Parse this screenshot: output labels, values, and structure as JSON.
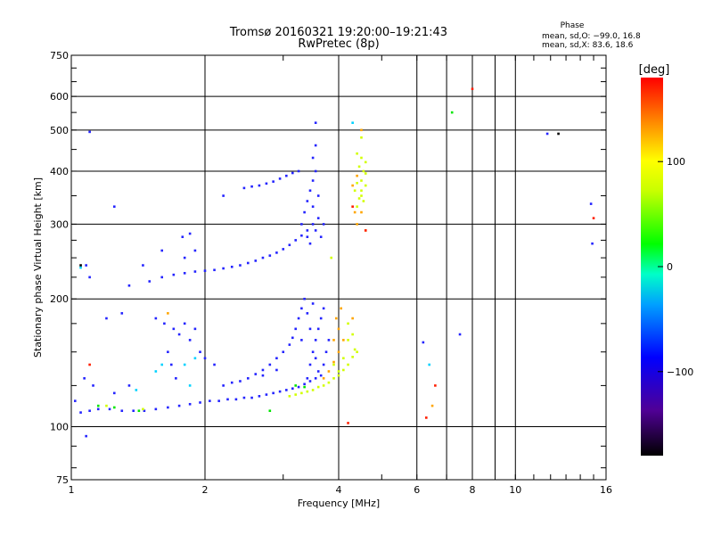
{
  "chart_data": {
    "type": "scatter",
    "title": "Tromsø 20160321 19:20:00–19:21:43",
    "subtitle": "RwPretec (8p)",
    "xlabel": "Frequency [MHz]",
    "ylabel": "Stationary phase Virtual Height [km]",
    "x_scale": "log",
    "y_scale": "log",
    "xlim": [
      1,
      16
    ],
    "ylim": [
      75,
      750
    ],
    "x_ticks": [
      1,
      2,
      4,
      6,
      8,
      10,
      16
    ],
    "x_tick_labels": [
      "1",
      "2",
      "4",
      "6",
      "8",
      "10",
      "16"
    ],
    "y_ticks": [
      75,
      100,
      200,
      300,
      400,
      500,
      600,
      750
    ],
    "y_tick_labels": [
      "75",
      "100",
      "200",
      "300",
      "400",
      "500",
      "600",
      "750"
    ],
    "grid": true,
    "phase_box": {
      "title": "Phase",
      "line1": "mean, sd,O: −99.0, 16.8",
      "line2": "mean, sd,X:  83.6, 18.6"
    },
    "colorbar": {
      "label": "[deg]",
      "ticks": [
        100,
        0,
        -100
      ],
      "tick_labels": [
        "100",
        "0",
        "−100"
      ],
      "range": [
        -180,
        180
      ]
    },
    "series": [
      {
        "color": "#2424ff",
        "points": [
          [
            1.05,
            108
          ],
          [
            1.1,
            109
          ],
          [
            1.15,
            110
          ],
          [
            1.22,
            110
          ],
          [
            1.3,
            109
          ],
          [
            1.38,
            109
          ],
          [
            1.46,
            109
          ],
          [
            1.55,
            110
          ],
          [
            1.65,
            111
          ],
          [
            1.75,
            112
          ],
          [
            1.85,
            113
          ],
          [
            1.95,
            114
          ],
          [
            2.05,
            115
          ],
          [
            2.15,
            115
          ],
          [
            2.25,
            116
          ],
          [
            2.35,
            116
          ],
          [
            2.45,
            117
          ],
          [
            2.55,
            117
          ],
          [
            2.65,
            118
          ],
          [
            2.75,
            119
          ],
          [
            2.85,
            120
          ],
          [
            2.95,
            121
          ],
          [
            3.05,
            122
          ],
          [
            3.15,
            123
          ],
          [
            3.25,
            124
          ],
          [
            3.35,
            126
          ],
          [
            3.45,
            128
          ],
          [
            3.55,
            130
          ],
          [
            3.65,
            132
          ],
          [
            2.2,
            125
          ],
          [
            2.3,
            127
          ],
          [
            2.4,
            128
          ],
          [
            2.5,
            130
          ],
          [
            2.6,
            133
          ],
          [
            2.7,
            136
          ],
          [
            2.8,
            140
          ],
          [
            2.9,
            145
          ],
          [
            3.0,
            150
          ],
          [
            3.1,
            156
          ],
          [
            3.15,
            162
          ],
          [
            3.2,
            170
          ],
          [
            3.25,
            180
          ],
          [
            3.3,
            190
          ],
          [
            3.35,
            200
          ],
          [
            3.4,
            130
          ],
          [
            3.45,
            140
          ],
          [
            3.5,
            150
          ],
          [
            3.55,
            160
          ],
          [
            3.6,
            170
          ],
          [
            3.65,
            180
          ],
          [
            3.7,
            190
          ],
          [
            3.4,
            185
          ],
          [
            3.5,
            195
          ],
          [
            3.3,
            160
          ],
          [
            3.45,
            170
          ],
          [
            3.55,
            145
          ],
          [
            3.75,
            150
          ],
          [
            3.8,
            160
          ],
          [
            3.7,
            140
          ],
          [
            3.6,
            135
          ],
          [
            1.5,
            220
          ],
          [
            1.6,
            225
          ],
          [
            1.7,
            228
          ],
          [
            1.8,
            230
          ],
          [
            1.9,
            232
          ],
          [
            2.0,
            233
          ],
          [
            2.1,
            234
          ],
          [
            2.2,
            236
          ],
          [
            2.3,
            238
          ],
          [
            2.4,
            240
          ],
          [
            2.5,
            243
          ],
          [
            2.6,
            246
          ],
          [
            2.7,
            250
          ],
          [
            2.8,
            253
          ],
          [
            2.9,
            257
          ],
          [
            3.0,
            262
          ],
          [
            3.1,
            268
          ],
          [
            3.2,
            275
          ],
          [
            3.3,
            282
          ],
          [
            3.4,
            290
          ],
          [
            3.5,
            300
          ],
          [
            2.45,
            365
          ],
          [
            2.55,
            368
          ],
          [
            2.65,
            370
          ],
          [
            2.75,
            374
          ],
          [
            2.85,
            378
          ],
          [
            2.95,
            384
          ],
          [
            3.05,
            390
          ],
          [
            3.15,
            396
          ],
          [
            3.25,
            400
          ],
          [
            3.3,
            300
          ],
          [
            3.35,
            320
          ],
          [
            3.4,
            340
          ],
          [
            3.45,
            360
          ],
          [
            3.5,
            380
          ],
          [
            3.55,
            400
          ],
          [
            3.5,
            430
          ],
          [
            3.55,
            460
          ],
          [
            3.55,
            520
          ],
          [
            3.6,
            310
          ],
          [
            3.6,
            350
          ],
          [
            3.65,
            280
          ],
          [
            3.7,
            300
          ],
          [
            3.4,
            280
          ],
          [
            3.45,
            270
          ],
          [
            3.5,
            330
          ],
          [
            3.55,
            290
          ],
          [
            1.78,
            280
          ],
          [
            1.85,
            285
          ],
          [
            1.8,
            250
          ],
          [
            1.9,
            260
          ],
          [
            1.6,
            260
          ],
          [
            1.45,
            240
          ],
          [
            1.35,
            215
          ],
          [
            1.1,
            225
          ],
          [
            1.08,
            240
          ],
          [
            2.2,
            350
          ],
          [
            1.25,
            330
          ],
          [
            1.55,
            180
          ],
          [
            1.62,
            175
          ],
          [
            1.7,
            170
          ],
          [
            1.75,
            165
          ],
          [
            1.8,
            175
          ],
          [
            1.9,
            170
          ],
          [
            1.85,
            160
          ],
          [
            1.95,
            150
          ],
          [
            2.0,
            145
          ],
          [
            2.1,
            140
          ],
          [
            1.65,
            150
          ],
          [
            1.68,
            140
          ],
          [
            1.72,
            130
          ],
          [
            1.3,
            185
          ],
          [
            1.2,
            180
          ],
          [
            1.07,
            130
          ],
          [
            1.12,
            125
          ],
          [
            1.02,
            115
          ],
          [
            1.25,
            120
          ],
          [
            1.35,
            125
          ],
          [
            1.1,
            495
          ],
          [
            1.08,
            95
          ],
          [
            7.5,
            165
          ],
          [
            11.8,
            490
          ],
          [
            14.8,
            335
          ],
          [
            14.9,
            270
          ],
          [
            6.2,
            158
          ],
          [
            2.7,
            132
          ],
          [
            2.9,
            136
          ]
        ]
      },
      {
        "color": "#00d2ff",
        "points": [
          [
            1.05,
            237
          ],
          [
            1.8,
            140
          ],
          [
            1.9,
            145
          ],
          [
            1.6,
            140
          ],
          [
            1.55,
            135
          ],
          [
            1.85,
            125
          ],
          [
            4.3,
            520
          ],
          [
            1.4,
            122
          ],
          [
            6.4,
            140
          ]
        ]
      },
      {
        "color": "#00e600",
        "points": [
          [
            1.25,
            111
          ],
          [
            1.42,
            109
          ],
          [
            2.8,
            109
          ],
          [
            7.2,
            550
          ],
          [
            3.2,
            125
          ],
          [
            1.15,
            112
          ],
          [
            3.35,
            124
          ]
        ]
      },
      {
        "color": "#d2ff00",
        "points": [
          [
            3.1,
            118
          ],
          [
            3.2,
            119
          ],
          [
            3.3,
            120
          ],
          [
            3.4,
            121
          ],
          [
            3.5,
            122
          ],
          [
            3.6,
            124
          ],
          [
            3.7,
            125
          ],
          [
            3.8,
            127
          ],
          [
            3.9,
            130
          ],
          [
            4.0,
            132
          ],
          [
            4.1,
            136
          ],
          [
            4.2,
            140
          ],
          [
            4.3,
            146
          ],
          [
            4.35,
            152
          ],
          [
            4.4,
            330
          ],
          [
            4.45,
            345
          ],
          [
            4.5,
            360
          ],
          [
            4.5,
            380
          ],
          [
            4.55,
            400
          ],
          [
            4.6,
            420
          ],
          [
            4.4,
            440
          ],
          [
            4.5,
            350
          ],
          [
            4.35,
            360
          ],
          [
            4.6,
            370
          ],
          [
            4.45,
            410
          ],
          [
            4.55,
            340
          ],
          [
            4.5,
            430
          ],
          [
            4.6,
            395
          ],
          [
            4.4,
            375
          ],
          [
            4.0,
            135
          ],
          [
            4.1,
            145
          ],
          [
            3.9,
            140
          ],
          [
            4.2,
            160
          ],
          [
            4.3,
            165
          ],
          [
            4.2,
            175
          ],
          [
            4.4,
            150
          ],
          [
            3.85,
            250
          ],
          [
            4.5,
            480
          ],
          [
            1.45,
            110
          ],
          [
            1.2,
            112
          ]
        ]
      },
      {
        "color": "#ffa500",
        "points": [
          [
            3.7,
            130
          ],
          [
            3.8,
            135
          ],
          [
            3.9,
            142
          ],
          [
            4.0,
            150
          ],
          [
            4.1,
            160
          ],
          [
            4.0,
            170
          ],
          [
            3.95,
            180
          ],
          [
            4.05,
            190
          ],
          [
            3.9,
            160
          ],
          [
            4.3,
            180
          ],
          [
            4.4,
            300
          ],
          [
            4.35,
            320
          ],
          [
            4.5,
            320
          ],
          [
            4.4,
            390
          ],
          [
            4.5,
            500
          ],
          [
            4.3,
            370
          ],
          [
            4.6,
            290
          ],
          [
            6.5,
            112
          ],
          [
            1.65,
            185
          ]
        ]
      },
      {
        "color": "#ff1e00",
        "points": [
          [
            6.3,
            105
          ],
          [
            4.2,
            102
          ],
          [
            4.3,
            330
          ],
          [
            1.1,
            140
          ],
          [
            8.0,
            625
          ],
          [
            15.0,
            310
          ],
          [
            6.6,
            125
          ],
          [
            4.6,
            290
          ]
        ]
      },
      {
        "color": "#000000",
        "points": [
          [
            12.5,
            490
          ],
          [
            1.05,
            240
          ]
        ]
      }
    ]
  }
}
